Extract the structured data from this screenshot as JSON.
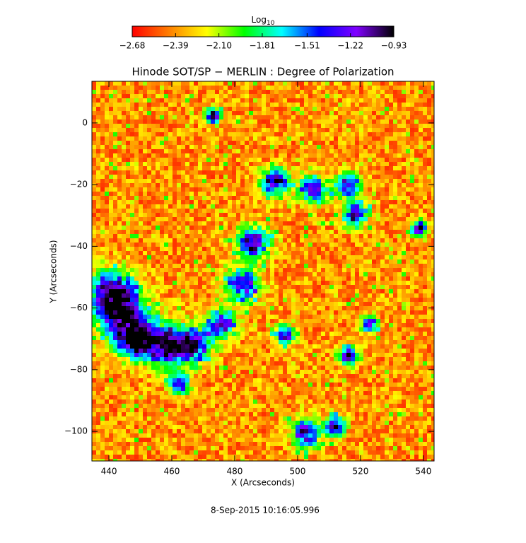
{
  "chart_data": {
    "type": "image",
    "title": "Hinode SOT/SP − MERLIN : Degree of Polarization",
    "xlabel": "X (Arcseconds)",
    "ylabel": "Y (Arcseconds)",
    "footer": "8-Sep-2015 10:16:05.996",
    "xlim": [
      434.6,
      543.4
    ],
    "ylim": [
      -109.6,
      13.5
    ],
    "xticks": [
      440,
      460,
      480,
      500,
      520,
      540
    ],
    "yticks": [
      {
        "value": -100,
        "label": "−100"
      },
      {
        "value": -80,
        "label": "−80"
      },
      {
        "value": -60,
        "label": "−60"
      },
      {
        "value": -40,
        "label": "−40"
      },
      {
        "value": -20,
        "label": "−20"
      },
      0
    ],
    "colorbar": {
      "label": "Log",
      "label_sub": "10",
      "lim": [
        -2.68,
        -0.93
      ],
      "ticks": [
        {
          "value": -2.68,
          "label": "−2.68"
        },
        {
          "value": -2.39,
          "label": "−2.39"
        },
        {
          "value": -2.1,
          "label": "−2.10"
        },
        {
          "value": -1.81,
          "label": "−1.81"
        },
        {
          "value": -1.51,
          "label": "−1.51"
        },
        {
          "value": -1.22,
          "label": "−1.22"
        },
        {
          "value": -0.93,
          "label": "−0.93"
        }
      ],
      "colors": [
        "#ff0000",
        "#ff8000",
        "#ffff00",
        "#00ff00",
        "#00ffff",
        "#0000ff",
        "#8000ff",
        "#000000"
      ]
    }
  }
}
